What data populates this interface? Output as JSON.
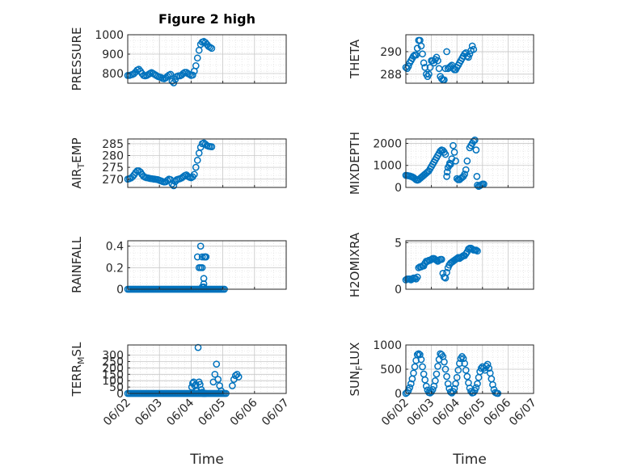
{
  "figure": {
    "title": "Figure 2 high"
  },
  "colors": {
    "marker": "#0072BD",
    "axis": "#262626",
    "grid": "#d9d9d9",
    "background": "#ffffff"
  },
  "chart_data": [
    {
      "type": "scatter",
      "ylabel": "PRESSURE",
      "title": "Figure 2 high",
      "xlim": [
        0,
        5
      ],
      "ylim": [
        750,
        1000
      ],
      "yticks": [
        800,
        900,
        1000
      ],
      "xticks": [
        "06/02",
        "06/03",
        "06/04",
        "06/05",
        "06/06",
        "06/07"
      ],
      "show_xtick_labels": false,
      "grid": true,
      "x_step": 0.05,
      "y": [
        790,
        790,
        793,
        795,
        800,
        808,
        818,
        822,
        812,
        800,
        790,
        788,
        790,
        795,
        800,
        805,
        800,
        795,
        790,
        785,
        782,
        780,
        775,
        773,
        778,
        785,
        792,
        796,
        760,
        752,
        770,
        785,
        788,
        788,
        792,
        800,
        806,
        806,
        800,
        795,
        790,
        792,
        812,
        840,
        880,
        920,
        950,
        962,
        965,
        960,
        950,
        940,
        935,
        930
      ]
    },
    {
      "type": "scatter",
      "ylabel": "THETA",
      "xlim": [
        0,
        5
      ],
      "ylim": [
        287.2,
        291.5
      ],
      "yticks": [
        288,
        290
      ],
      "xticks": [
        "06/02",
        "06/03",
        "06/04",
        "06/05",
        "06/06",
        "06/07"
      ],
      "show_xtick_labels": false,
      "grid": true,
      "x_step": 0.05,
      "y": [
        288.6,
        288.5,
        288.7,
        289.0,
        289.2,
        289.4,
        289.6,
        289.7,
        289.7,
        290.3,
        291.0,
        291.0,
        290.5,
        289.8,
        289.0,
        288.6,
        288.0,
        287.8,
        288.0,
        288.6,
        289.2,
        289.2,
        289.0,
        289.3,
        289.5,
        289.2,
        288.5,
        287.8,
        287.6,
        287.5,
        287.5,
        288.5,
        290.0,
        288.5,
        288.6,
        288.7,
        288.8,
        288.5,
        288.4,
        288.4,
        288.6,
        288.8,
        289.0,
        289.2,
        289.4,
        289.6,
        289.8,
        289.9,
        289.6,
        289.5,
        289.8,
        290.1,
        290.5,
        290.2
      ]
    },
    {
      "type": "scatter",
      "ylabel": "AIR_TEMP",
      "xlim": [
        0,
        5
      ],
      "ylim": [
        266.5,
        287
      ],
      "yticks": [
        270,
        275,
        280,
        285
      ],
      "xticks": [
        "06/02",
        "06/03",
        "06/04",
        "06/05",
        "06/06",
        "06/07"
      ],
      "show_xtick_labels": false,
      "grid": true,
      "x_step": 0.05,
      "y": [
        270.0,
        270.2,
        270.5,
        271.0,
        271.8,
        272.8,
        273.5,
        273.5,
        273.0,
        272.0,
        271.2,
        270.8,
        270.6,
        270.5,
        270.3,
        270.2,
        270.1,
        270.0,
        269.9,
        269.8,
        269.5,
        269.3,
        269.0,
        268.8,
        268.9,
        269.5,
        270.0,
        269.8,
        268.0,
        267.2,
        269.0,
        269.8,
        270.0,
        270.2,
        270.5,
        271.0,
        271.5,
        271.8,
        271.2,
        270.8,
        270.6,
        271.0,
        272.0,
        275.0,
        278.0,
        281.0,
        283.5,
        285.0,
        285.3,
        284.8,
        284.2,
        283.9,
        283.8,
        283.7
      ]
    },
    {
      "type": "scatter",
      "ylabel": "MIXDEPTH",
      "xlim": [
        0,
        5
      ],
      "ylim": [
        0,
        2200
      ],
      "yticks": [
        0,
        1000,
        2000
      ],
      "xticks": [
        "06/02",
        "06/03",
        "06/04",
        "06/05",
        "06/06",
        "06/07"
      ],
      "show_xtick_labels": false,
      "grid": true,
      "x_step": 0.05,
      "y": [
        550,
        540,
        530,
        520,
        500,
        480,
        450,
        400,
        350,
        330,
        350,
        400,
        450,
        500,
        550,
        600,
        650,
        700,
        750,
        850,
        950,
        1050,
        1150,
        1250,
        1350,
        1450,
        1550,
        1650,
        1700,
        1680,
        1600,
        1500,
        500,
        700,
        900,
        1000,
        1100,
        1050,
        1300,
        1900,
        1600,
        1200,
        400,
        350,
        350,
        400,
        450,
        500,
        600,
        800,
        1200,
        1800,
        1900,
        2000,
        2100,
        2150,
        1700,
        500,
        100,
        50,
        80,
        120,
        150,
        150
      ],
      "x": [
        0.0,
        0.05,
        0.1,
        0.15,
        0.2,
        0.25,
        0.3,
        0.35,
        0.4,
        0.45,
        0.5,
        0.55,
        0.6,
        0.65,
        0.7,
        0.75,
        0.8,
        0.85,
        0.9,
        0.95,
        1.0,
        1.05,
        1.1,
        1.15,
        1.2,
        1.25,
        1.3,
        1.35,
        1.4,
        1.45,
        1.5,
        1.55,
        1.6,
        1.62,
        1.65,
        1.7,
        1.72,
        1.75,
        1.8,
        1.85,
        1.9,
        1.95,
        2.0,
        2.05,
        2.1,
        2.15,
        2.2,
        2.25,
        2.3,
        2.35,
        2.4,
        2.5,
        2.55,
        2.6,
        2.65,
        2.7,
        2.75,
        2.78,
        2.8,
        2.85,
        2.9,
        2.95,
        3.0,
        3.05
      ]
    },
    {
      "type": "scatter",
      "ylabel": "RAINFALL",
      "xlim": [
        0,
        5
      ],
      "ylim": [
        0,
        0.45
      ],
      "yticks": [
        0,
        0.2,
        0.4
      ],
      "xticks": [
        "06/02",
        "06/03",
        "06/04",
        "06/05",
        "06/06",
        "06/07"
      ],
      "show_xtick_labels": false,
      "grid": true,
      "x": [
        0.0,
        0.05,
        0.1,
        0.15,
        0.2,
        0.25,
        0.3,
        0.35,
        0.4,
        0.45,
        0.5,
        0.55,
        0.6,
        0.65,
        0.7,
        0.75,
        0.8,
        0.85,
        0.9,
        0.95,
        1.0,
        1.05,
        1.1,
        1.15,
        1.2,
        1.25,
        1.3,
        1.35,
        1.4,
        1.45,
        1.5,
        1.55,
        1.6,
        1.65,
        1.7,
        1.75,
        1.8,
        1.85,
        1.9,
        1.95,
        2.0,
        2.05,
        2.1,
        2.15,
        2.2,
        2.25,
        2.3,
        2.35,
        2.4,
        2.45,
        2.5,
        2.55,
        2.6,
        2.65,
        2.7,
        2.75,
        2.8,
        2.85,
        2.9,
        2.95,
        3.0,
        3.05,
        2.2,
        2.25,
        2.3,
        2.3,
        2.35,
        2.35,
        2.4,
        2.4,
        2.42,
        2.45,
        2.47,
        2.35,
        2.4
      ],
      "y": [
        0,
        0,
        0,
        0,
        0,
        0,
        0,
        0,
        0,
        0,
        0,
        0,
        0,
        0,
        0,
        0,
        0,
        0,
        0,
        0,
        0,
        0,
        0,
        0,
        0,
        0,
        0,
        0,
        0,
        0,
        0,
        0,
        0,
        0,
        0,
        0,
        0,
        0,
        0,
        0,
        0,
        0,
        0,
        0,
        0,
        0,
        0,
        0,
        0,
        0,
        0,
        0,
        0,
        0,
        0,
        0,
        0,
        0,
        0,
        0,
        0,
        0,
        0.3,
        0.2,
        0.2,
        0.4,
        0.2,
        0.3,
        0.1,
        0.05,
        0.3,
        0.3,
        0.3,
        0.02,
        0.02
      ]
    },
    {
      "type": "scatter",
      "ylabel": "H2OMIXRA",
      "xlim": [
        0,
        5
      ],
      "ylim": [
        0,
        5.2
      ],
      "yticks": [
        0,
        5
      ],
      "xticks": [
        "06/02",
        "06/03",
        "06/04",
        "06/05",
        "06/06",
        "06/07"
      ],
      "show_xtick_labels": false,
      "grid": true,
      "x_step": 0.05,
      "y": [
        1.0,
        1.1,
        1.1,
        1.1,
        1.0,
        1.1,
        1.2,
        1.2,
        1.1,
        1.3,
        2.3,
        2.4,
        2.4,
        2.5,
        2.5,
        2.8,
        3.0,
        3.0,
        3.1,
        3.1,
        3.2,
        3.3,
        3.3,
        3.2,
        3.1,
        3.0,
        3.1,
        3.2,
        3.2,
        1.7,
        1.3,
        1.2,
        1.8,
        2.3,
        2.6,
        2.8,
        2.9,
        3.0,
        3.1,
        3.2,
        3.3,
        3.4,
        3.3,
        3.4,
        3.5,
        3.6,
        3.6,
        3.8,
        4.0,
        4.3,
        4.4,
        4.4,
        4.3,
        4.2,
        4.2,
        4.2,
        4.1
      ]
    },
    {
      "type": "scatter",
      "ylabel": "TERR_MSL",
      "xlim": [
        0,
        5
      ],
      "ylim": [
        0,
        380
      ],
      "yticks": [
        0,
        50,
        100,
        150,
        200,
        250,
        300
      ],
      "xticks": [
        "06/02",
        "06/03",
        "06/04",
        "06/05",
        "06/06",
        "06/07"
      ],
      "show_xtick_labels": true,
      "xlabel": "Time",
      "grid": true,
      "x": [
        0.0,
        0.05,
        0.1,
        0.15,
        0.2,
        0.25,
        0.3,
        0.35,
        0.4,
        0.45,
        0.5,
        0.55,
        0.6,
        0.65,
        0.7,
        0.75,
        0.8,
        0.85,
        0.9,
        0.95,
        1.0,
        1.05,
        1.1,
        1.15,
        1.2,
        1.25,
        1.3,
        1.35,
        1.4,
        1.45,
        1.5,
        1.55,
        1.6,
        1.65,
        1.7,
        1.75,
        1.8,
        1.85,
        1.9,
        1.95,
        2.0,
        2.05,
        2.1,
        2.15,
        2.2,
        2.25,
        2.3,
        2.35,
        2.4,
        2.45,
        2.5,
        2.55,
        2.6,
        2.65,
        2.7,
        2.75,
        2.8,
        2.85,
        2.9,
        2.95,
        3.0,
        3.05,
        3.1,
        2.02,
        2.05,
        2.08,
        2.12,
        2.15,
        2.18,
        2.22,
        2.25,
        2.28,
        2.32,
        2.35,
        2.38,
        2.42,
        2.45,
        2.7,
        2.75,
        2.8,
        2.85,
        2.9,
        2.95,
        3.3,
        3.35,
        3.4,
        3.45,
        3.5
      ],
      "y": [
        0,
        0,
        0,
        0,
        0,
        0,
        0,
        0,
        0,
        0,
        0,
        0,
        0,
        0,
        0,
        0,
        0,
        0,
        0,
        0,
        0,
        0,
        0,
        0,
        0,
        0,
        0,
        0,
        0,
        0,
        0,
        0,
        0,
        0,
        0,
        0,
        0,
        0,
        0,
        0,
        0,
        0,
        0,
        0,
        0,
        0,
        0,
        0,
        0,
        0,
        0,
        0,
        0,
        0,
        0,
        0,
        0,
        0,
        0,
        0,
        0,
        0,
        0,
        50,
        80,
        90,
        60,
        70,
        20,
        360,
        90,
        70,
        30,
        10,
        0,
        0,
        0,
        90,
        150,
        230,
        110,
        60,
        20,
        60,
        110,
        140,
        150,
        130
      ]
    },
    {
      "type": "scatter",
      "ylabel": "SUN_FLUX",
      "xlim": [
        0,
        5
      ],
      "ylim": [
        0,
        1000
      ],
      "yticks": [
        0,
        500,
        1000
      ],
      "xticks": [
        "06/02",
        "06/03",
        "06/04",
        "06/05",
        "06/06",
        "06/07"
      ],
      "show_xtick_labels": true,
      "xlabel": "Time",
      "grid": true,
      "x_step": 0.05,
      "y": [
        0,
        20,
        60,
        120,
        200,
        300,
        420,
        550,
        680,
        800,
        820,
        800,
        700,
        550,
        400,
        280,
        150,
        70,
        20,
        10,
        30,
        80,
        150,
        260,
        400,
        560,
        700,
        820,
        800,
        760,
        650,
        500,
        350,
        200,
        100,
        30,
        10,
        40,
        100,
        200,
        330,
        480,
        620,
        720,
        760,
        720,
        620,
        480,
        350,
        220,
        110,
        40,
        10,
        20,
        60,
        120,
        200,
        330,
        450,
        520,
        550,
        520,
        480,
        560,
        600,
        520,
        420,
        300,
        180,
        80,
        20,
        5,
        0
      ]
    }
  ]
}
